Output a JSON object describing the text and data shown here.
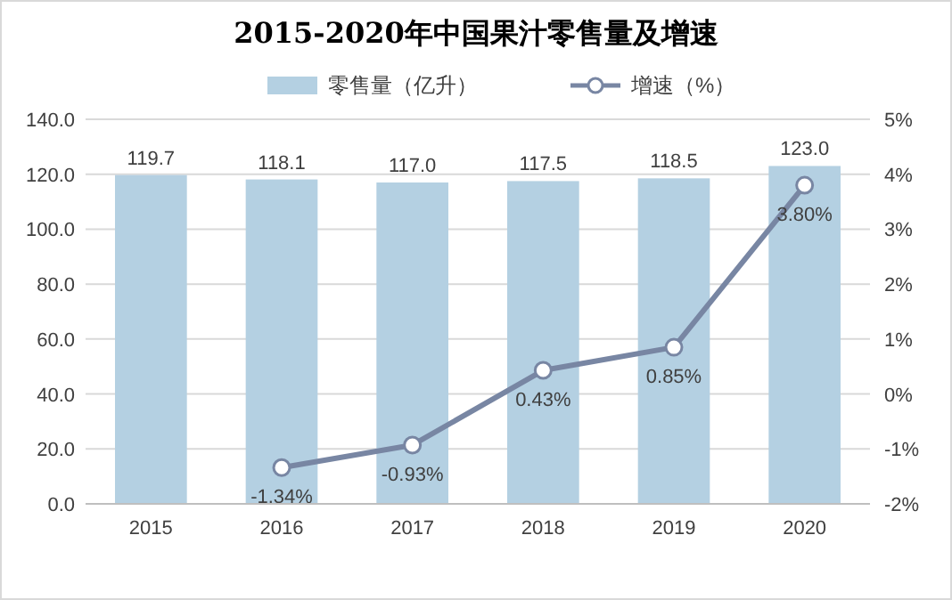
{
  "chart_data": {
    "type": "bar",
    "title": "2015-2020年中国果汁零售量及增速",
    "categories": [
      "2015",
      "2016",
      "2017",
      "2018",
      "2019",
      "2020"
    ],
    "series": [
      {
        "name": "零售量（亿升）",
        "color": "#b4d0e2",
        "values": [
          119.7,
          118.1,
          117.0,
          117.5,
          118.5,
          123.0
        ],
        "value_labels": [
          "119.7",
          "118.1",
          "117.0",
          "117.5",
          "118.5",
          "123.0"
        ]
      },
      {
        "name": "增速（%）",
        "type": "line",
        "axis": "y2",
        "color": "#7886a3",
        "values": [
          null,
          -1.34,
          -0.93,
          0.43,
          0.85,
          3.8
        ],
        "value_labels": [
          null,
          "-1.34%",
          "-0.93%",
          "0.43%",
          "0.85%",
          "3.80%"
        ]
      }
    ],
    "ylim": [
      0,
      140
    ],
    "yticks": [
      {
        "value": 0,
        "label": "0.0"
      },
      {
        "value": 20,
        "label": "20.0"
      },
      {
        "value": 40,
        "label": "40.0"
      },
      {
        "value": 60,
        "label": "60.0"
      },
      {
        "value": 80,
        "label": "80.0"
      },
      {
        "value": 100,
        "label": "100.0"
      },
      {
        "value": 120,
        "label": "120.0"
      },
      {
        "value": 140,
        "label": "140.0"
      }
    ],
    "y2lim": [
      -2,
      5
    ],
    "y2ticks": [
      {
        "value": -2,
        "label": "-2%"
      },
      {
        "value": -1,
        "label": "-1%"
      },
      {
        "value": 0,
        "label": "0%"
      },
      {
        "value": 1,
        "label": "1%"
      },
      {
        "value": 2,
        "label": "2%"
      },
      {
        "value": 3,
        "label": "3%"
      },
      {
        "value": 4,
        "label": "4%"
      },
      {
        "value": 5,
        "label": "5%"
      }
    ],
    "grid": "y",
    "legend": "top",
    "marker": "circle",
    "line_style": "solid"
  }
}
